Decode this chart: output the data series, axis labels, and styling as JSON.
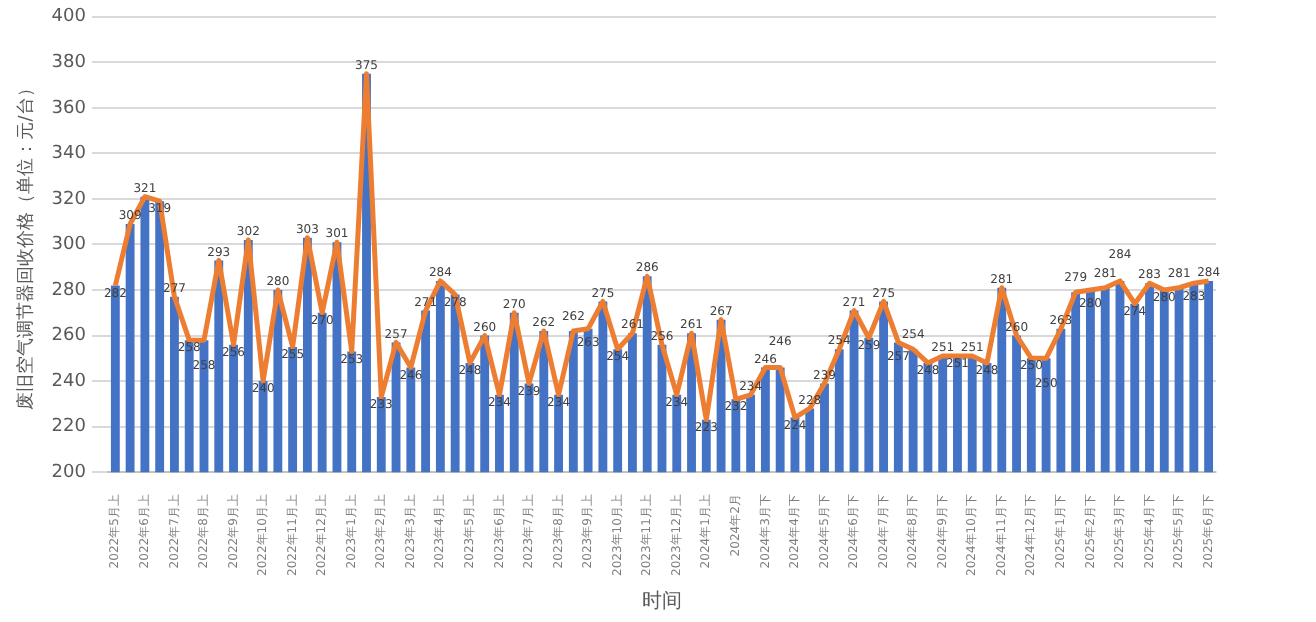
{
  "chart_data": {
    "type": "bar",
    "xlabel": "时间",
    "ylabel": "废旧空气调节器回收价格（单位：元/台）",
    "categories": [
      "2022年5月上",
      null,
      "2022年6月上",
      null,
      "2022年7月上",
      null,
      "2022年8月上",
      null,
      "2022年9月上",
      null,
      "2022年10月上",
      null,
      "2022年11月上",
      null,
      "2022年12月上",
      null,
      "2023年1月上",
      null,
      "2023年2月上",
      null,
      "2023年3月上",
      null,
      "2023年4月上",
      null,
      "2023年5月上",
      null,
      "2023年6月上",
      null,
      "2023年7月上",
      null,
      "2023年8月上",
      null,
      "2023年9月上",
      null,
      "2023年10月上",
      null,
      "2023年11月上",
      null,
      "2023年12月上",
      null,
      "2024年1月上",
      null,
      "2024年2月",
      null,
      "2024年3月下",
      null,
      "2024年4月下",
      null,
      "2024年5月下",
      null,
      "2024年6月下",
      null,
      "2024年7月下",
      null,
      "2024年8月下",
      null,
      "2024年9月下",
      null,
      "2024年10月下",
      null,
      "2024年11月下",
      null,
      "2024年12月下",
      null,
      "2025年1月下",
      null,
      "2025年2月下",
      null,
      "2025年3月下",
      null,
      "2025年4月下",
      null,
      "2025年5月下",
      null,
      "2025年6月下"
    ],
    "series": [
      {
        "color": "#4472c4",
        "values": [
          282,
          309,
          321,
          319,
          277,
          258,
          258,
          293,
          256,
          302,
          240,
          280,
          255,
          303,
          270,
          301,
          253,
          375,
          233,
          257,
          246,
          271,
          284,
          278,
          248,
          260,
          234,
          270,
          239,
          262,
          234,
          262,
          263,
          275,
          254,
          261,
          286,
          256,
          234,
          261,
          223,
          267,
          232,
          234,
          246,
          246,
          224,
          228,
          239,
          254,
          271,
          259,
          275,
          257,
          254,
          248,
          251,
          251,
          251,
          248,
          281,
          260,
          250,
          250,
          263,
          279,
          280,
          281,
          284,
          274,
          283,
          280,
          281,
          283,
          284
        ]
      },
      {
        "type": "line",
        "color": "#ed7d31",
        "marker": "none",
        "values": [
          282,
          309,
          321,
          319,
          277,
          258,
          258,
          293,
          256,
          302,
          240,
          280,
          255,
          303,
          270,
          301,
          253,
          375,
          233,
          257,
          246,
          271,
          284,
          278,
          248,
          260,
          234,
          270,
          239,
          262,
          234,
          262,
          263,
          275,
          254,
          261,
          286,
          256,
          234,
          261,
          223,
          267,
          232,
          234,
          246,
          246,
          224,
          228,
          239,
          254,
          271,
          259,
          275,
          257,
          254,
          248,
          251,
          251,
          251,
          248,
          281,
          260,
          250,
          250,
          263,
          279,
          280,
          281,
          284,
          274,
          283,
          280,
          281,
          283,
          284
        ],
        "value_labels": [
          "282",
          "309",
          "321",
          "319",
          "277",
          "258",
          "258",
          "293",
          "256",
          "302",
          "240",
          "280",
          "255",
          "303",
          "270",
          "301",
          "253",
          "375",
          "233",
          "257",
          "246",
          "271",
          "284",
          "278",
          "248",
          "260",
          "234",
          "270",
          "239",
          "262",
          "234",
          "262",
          "263",
          "275",
          "254",
          "261",
          "286",
          "256",
          "234",
          "261",
          "223",
          "267",
          "232",
          "234",
          "246",
          "246",
          "224",
          "228",
          "239",
          "254",
          "271",
          "259",
          "275",
          "257",
          "254",
          "248",
          "251",
          "251",
          "251",
          "248",
          "281",
          "260",
          "250",
          "250",
          "263",
          "279",
          "280",
          "281",
          "284",
          "274",
          "283",
          "280",
          "281",
          "283",
          "284"
        ]
      }
    ],
    "ylim": [
      200,
      400
    ],
    "yticks": [
      200,
      220,
      240,
      260,
      280,
      300,
      320,
      340,
      360,
      380,
      400
    ],
    "grid": "y",
    "legend": false
  }
}
